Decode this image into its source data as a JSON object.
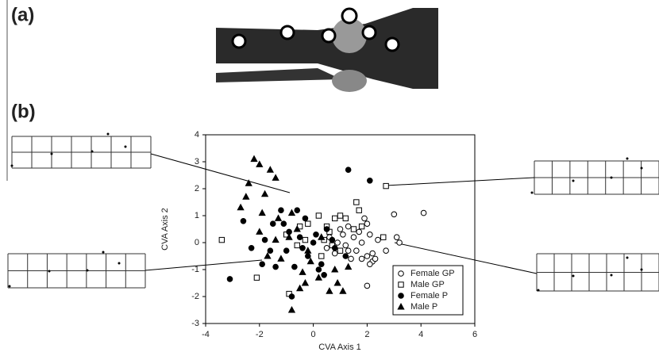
{
  "panel_labels": [
    "(a)",
    "(b)"
  ],
  "chart_data": {
    "type": "scatter",
    "xlabel": "CVA Axis 1",
    "ylabel": "CVA Axis 2",
    "xlim": [
      -4,
      6
    ],
    "ylim": [
      -3,
      4
    ],
    "xticks": [
      -4,
      -2,
      0,
      2,
      4,
      6
    ],
    "yticks": [
      -3,
      -2,
      -1,
      0,
      1,
      2,
      3,
      4
    ],
    "legend": "lower right",
    "series": [
      {
        "name": "Female GP",
        "color": "#000000",
        "marker": "circle-open",
        "x": [
          4.1,
          3,
          3.1,
          3.2,
          2.7,
          2.2,
          2.1,
          2.3,
          2,
          2,
          1.8,
          2,
          2.1,
          1.8,
          1.6,
          1.5,
          1.3,
          1,
          1.2,
          0.9,
          0.8,
          1.1,
          1.4,
          1.7,
          2.2,
          0.6,
          0.5,
          1.9,
          2.4,
          1.3
        ],
        "y": [
          1.1,
          1.05,
          0.2,
          0,
          -0.3,
          -0.7,
          -0.8,
          -0.6,
          -1.6,
          -0.5,
          -0.6,
          0.7,
          0.3,
          0,
          -0.3,
          0.2,
          0.6,
          0.5,
          -0.1,
          0,
          -0.4,
          0.3,
          -0.6,
          0.4,
          -0.4,
          0.2,
          -0.2,
          0.9,
          0.1,
          -0.3
        ]
      },
      {
        "name": "Male GP",
        "color": "#000000",
        "marker": "square-open",
        "x": [
          2.7,
          -3.4,
          1.6,
          1.7,
          2.6,
          -2.1,
          -0.9,
          1.2,
          0.8,
          1,
          0.2,
          -0.5,
          -0.2,
          0.5,
          0.4,
          -0.3,
          0.7,
          1.5,
          1.8,
          0.3,
          -0.6,
          1,
          0.6,
          -1
        ],
        "y": [
          2.1,
          0.1,
          1.5,
          1.2,
          0.2,
          -1.3,
          -1.9,
          0.9,
          0.9,
          1,
          1,
          0.6,
          0.7,
          0.6,
          0.1,
          0.1,
          -0.1,
          0.5,
          0.6,
          -0.5,
          -0.1,
          -0.3,
          0.4,
          0.3
        ]
      },
      {
        "name": "Female P",
        "color": "#000000",
        "marker": "circle",
        "x": [
          2.1,
          1.3,
          -3.1,
          -0.8,
          -1.2,
          -1.5,
          -2.6,
          -1.8,
          -1,
          -0.5,
          -0.2,
          0,
          0.3,
          -0.7,
          -1.4,
          0.5,
          -0.3,
          0.8,
          -1.9,
          0.4,
          -0.9,
          -1.6,
          0.1,
          -0.4,
          0.7,
          -1.1,
          -0.6,
          0.2,
          -2.3,
          1.2
        ],
        "y": [
          2.3,
          2.7,
          -1.35,
          -2,
          1.2,
          0.7,
          0.8,
          0.1,
          -0.3,
          0.2,
          -0.5,
          0,
          -0.8,
          -0.9,
          -0.9,
          0.5,
          0.9,
          -0.2,
          -0.8,
          -1.2,
          0.4,
          -0.3,
          0.3,
          -0.2,
          0.1,
          0.7,
          1.2,
          -1,
          -0.2,
          -0.5
        ]
      },
      {
        "name": "Male P",
        "color": "#000000",
        "marker": "triangle",
        "x": [
          -2.2,
          -2,
          -1.6,
          -2.5,
          -2.4,
          -1.8,
          -1.4,
          -2.7,
          -1.9,
          -1.3,
          -0.8,
          -1.7,
          -1.2,
          -0.3,
          -0.5,
          -0.8,
          -0.4,
          0.2,
          0.6,
          0.9,
          1.1,
          1.3,
          0.8,
          -0.1,
          -0.9,
          -1.4,
          -2,
          -0.6,
          0.3,
          -0.2
        ],
        "y": [
          3.1,
          2.9,
          2.7,
          1.7,
          2.2,
          1.8,
          2.4,
          1.3,
          1.1,
          0.9,
          1.1,
          -0.5,
          -0.6,
          -1.5,
          -1.7,
          -2.5,
          -1.1,
          -1.3,
          -1.8,
          -1.5,
          -1.8,
          -0.9,
          -1,
          -0.7,
          0.2,
          0.1,
          0.4,
          0.5,
          0.2,
          -0.3
        ]
      }
    ]
  }
}
